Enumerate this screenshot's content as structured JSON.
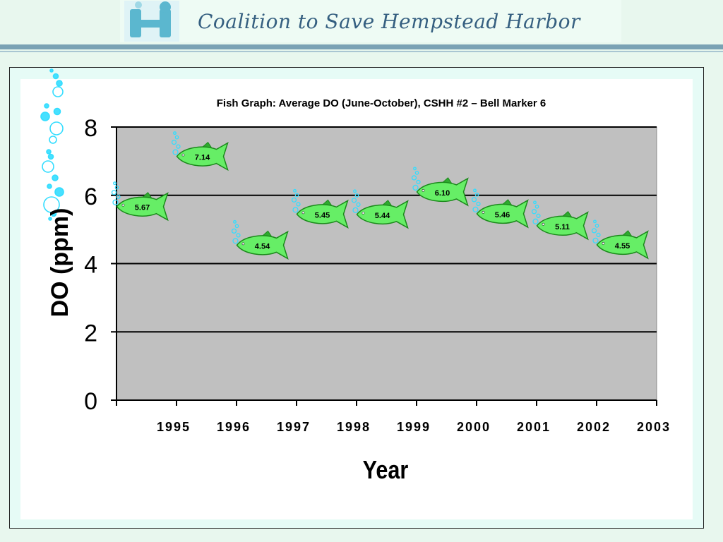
{
  "header": {
    "logo_letter": "H",
    "org_name": "Coalition to Save Hempstead Harbor"
  },
  "colors": {
    "banner_rule": "#7aa2b4",
    "plot_background": "#c0c0c0",
    "fish_fill": "#66ee66",
    "fish_outline": "#1b8a1b",
    "bubble": "#33ddff"
  },
  "chart_data": {
    "type": "scatter",
    "title": "Fish Graph: Average DO (June-October), CSHH #2 – Bell Marker 6",
    "xlabel": "Year",
    "ylabel": "DO (ppm)",
    "categories": [
      "1995",
      "1996",
      "1997",
      "1998",
      "1999",
      "2000",
      "2001",
      "2002",
      "2003"
    ],
    "values": [
      5.67,
      7.14,
      4.54,
      5.45,
      5.44,
      6.1,
      5.46,
      5.11,
      4.55
    ],
    "data_labels": [
      "5.67",
      "7.14",
      "4.54",
      "5.45",
      "5.44",
      "6.10",
      "5.46",
      "5.11",
      "4.55"
    ],
    "ylim": [
      0,
      8
    ],
    "yticks": [
      "0",
      "2",
      "4",
      "6",
      "8"
    ],
    "grid": true,
    "marker": "fish-icon"
  }
}
